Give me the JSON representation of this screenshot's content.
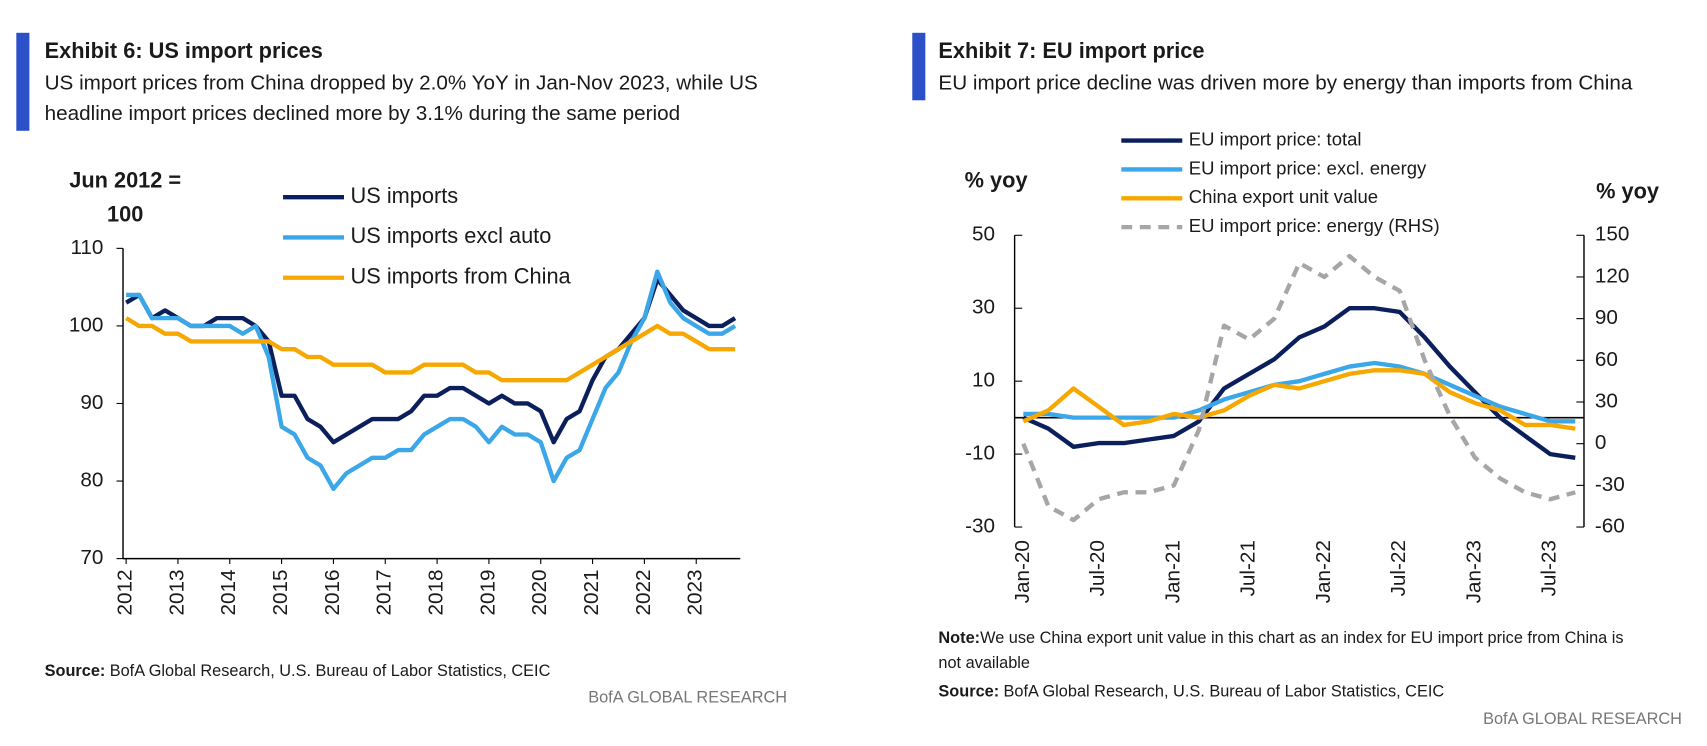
{
  "chart_data": [
    {
      "type": "line",
      "title": "Exhibit 6: US import prices",
      "subtitle": [
        "US import prices from China dropped by 2.0% YoY in Jan-Nov 2023, while US",
        "headline import prices declined more by 3.1% during the same period"
      ],
      "y_label": [
        "Jun 2012 =",
        "100"
      ],
      "xlim": [
        2011.94,
        2023.85
      ],
      "xticks": [
        2012,
        2013,
        2014,
        2015,
        2016,
        2017,
        2018,
        2019,
        2020,
        2021,
        2022,
        2023
      ],
      "ylim": [
        70,
        110
      ],
      "yticks": [
        70,
        80,
        90,
        100,
        110
      ],
      "x": [
        2012,
        2012.25,
        2012.5,
        2012.75,
        2013,
        2013.25,
        2013.5,
        2013.75,
        2014,
        2014.25,
        2014.5,
        2014.75,
        2015,
        2015.25,
        2015.5,
        2015.75,
        2016,
        2016.25,
        2016.5,
        2016.75,
        2017,
        2017.25,
        2017.5,
        2017.75,
        2018,
        2018.25,
        2018.5,
        2018.75,
        2019,
        2019.25,
        2019.5,
        2019.75,
        2020,
        2020.25,
        2020.5,
        2020.75,
        2021,
        2021.25,
        2021.5,
        2021.75,
        2022,
        2022.25,
        2022.5,
        2022.75,
        2023,
        2023.25,
        2023.5,
        2023.75
      ],
      "series": [
        {
          "name": "US imports",
          "color": "#0b1f5c",
          "values": [
            103,
            104,
            101,
            102,
            101,
            100,
            100,
            101,
            101,
            101,
            100,
            98,
            91,
            91,
            88,
            87,
            85,
            86,
            87,
            88,
            88,
            88,
            89,
            91,
            91,
            92,
            92,
            91,
            90,
            91,
            90,
            90,
            89,
            85,
            88,
            89,
            93,
            96,
            97,
            99,
            101,
            106,
            104,
            102,
            101,
            100,
            100,
            101
          ]
        },
        {
          "name": "US imports excl auto",
          "color": "#3ba7e8",
          "values": [
            104,
            104,
            101,
            101,
            101,
            100,
            100,
            100,
            100,
            99,
            100,
            96,
            87,
            86,
            83,
            82,
            79,
            81,
            82,
            83,
            83,
            84,
            84,
            86,
            87,
            88,
            88,
            87,
            85,
            87,
            86,
            86,
            85,
            80,
            83,
            84,
            88,
            92,
            94,
            98,
            101,
            107,
            103,
            101,
            100,
            99,
            99,
            100
          ]
        },
        {
          "name": "US imports from China",
          "color": "#f6a800",
          "values": [
            101,
            100,
            100,
            99,
            99,
            98,
            98,
            98,
            98,
            98,
            98,
            98,
            97,
            97,
            96,
            96,
            95,
            95,
            95,
            95,
            94,
            94,
            94,
            95,
            95,
            95,
            95,
            94,
            94,
            93,
            93,
            93,
            93,
            93,
            93,
            94,
            95,
            96,
            97,
            98,
            99,
            100,
            99,
            99,
            98,
            97,
            97,
            97
          ]
        }
      ],
      "source_label": "Source:",
      "source": "BofA Global Research, U.S. Bureau of Labor Statistics, CEIC",
      "credit": "BofA GLOBAL RESEARCH"
    },
    {
      "type": "line",
      "title": "Exhibit 7: EU import price",
      "subtitle": [
        "EU import price decline was driven more by energy than imports from China"
      ],
      "y_label": "% yoy",
      "y2_label": "% yoy",
      "categories": [
        "Jan-20",
        null,
        null,
        "Jul-20",
        null,
        null,
        "Jan-21",
        null,
        null,
        "Jul-21",
        null,
        null,
        "Jan-22",
        null,
        null,
        "Jul-22",
        null,
        null,
        "Jan-23",
        null,
        null,
        "Jul-23",
        null
      ],
      "ylim": [
        -30,
        50
      ],
      "yticks": [
        -30,
        -10,
        10,
        30,
        50
      ],
      "y2lim": [
        -60,
        150
      ],
      "y2ticks": [
        -60,
        -30,
        0,
        30,
        60,
        90,
        120,
        150
      ],
      "zero_line": true,
      "series": [
        {
          "name": "EU import price: total",
          "color": "#0b1f5c",
          "values": [
            0,
            -3,
            -8,
            -7,
            -7,
            -6,
            -5,
            -1,
            8,
            12,
            16,
            22,
            25,
            30,
            30,
            29,
            22,
            14,
            7,
            0,
            -5,
            -10,
            -11
          ]
        },
        {
          "name": "EU import price: excl. energy",
          "color": "#3ba7e8",
          "values": [
            1,
            1,
            0,
            0,
            0,
            0,
            0,
            2,
            5,
            7,
            9,
            10,
            12,
            14,
            15,
            14,
            12,
            9,
            6,
            3,
            1,
            -1,
            -1
          ]
        },
        {
          "name": "China export unit value",
          "color": "#f6a800",
          "values": [
            -1,
            2,
            8,
            3,
            -2,
            -1,
            1,
            0,
            2,
            6,
            9,
            8,
            10,
            12,
            13,
            13,
            12,
            7,
            4,
            2,
            -2,
            -2,
            -3
          ]
        },
        {
          "name": "EU import price: energy (RHS)",
          "color": "#a6a6a6",
          "dashed": true,
          "axis": "y2",
          "values": [
            0,
            -45,
            -55,
            -40,
            -35,
            -35,
            -30,
            10,
            85,
            75,
            90,
            130,
            120,
            135,
            120,
            110,
            60,
            20,
            -10,
            -25,
            -35,
            -40,
            -35
          ]
        }
      ],
      "note_label": "Note:",
      "note": [
        "We use China export unit value in this chart as an index for EU import price from China is",
        "not available"
      ],
      "source_label": "Source:",
      "source": "BofA Global Research, U.S. Bureau of Labor Statistics, CEIC",
      "credit": "BofA GLOBAL RESEARCH"
    }
  ]
}
